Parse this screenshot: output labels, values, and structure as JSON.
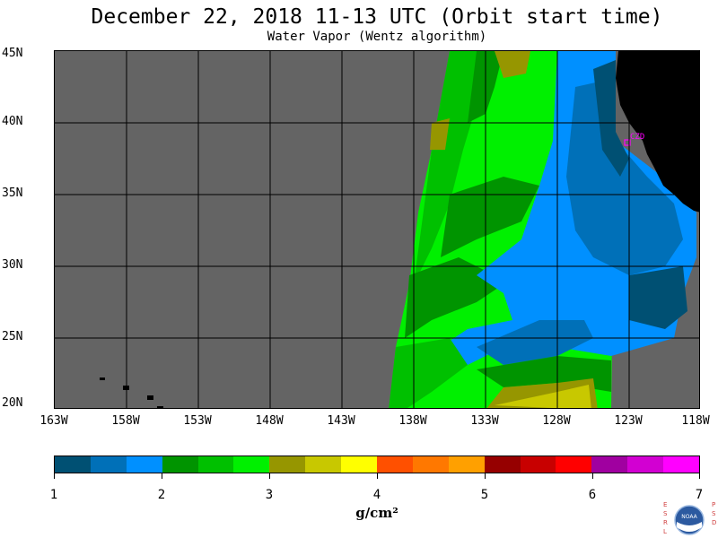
{
  "header": {
    "title": "December 22, 2018  11-13 UTC  (Orbit start time)",
    "subtitle": "Water Vapor (Wentz algorithm)"
  },
  "map": {
    "lat_labels": [
      "45N",
      "40N",
      "35N",
      "30N",
      "25N",
      "20N"
    ],
    "lon_labels": [
      "163W",
      "158W",
      "153W",
      "148W",
      "143W",
      "138W",
      "133W",
      "128W",
      "123W",
      "118W"
    ],
    "lat_values": [
      45,
      40,
      35,
      30,
      25,
      20
    ],
    "lon_values": [
      -163,
      -158,
      -153,
      -148,
      -143,
      -138,
      -133,
      -128,
      -123,
      -118
    ],
    "station_label": "CZD",
    "colors": {
      "no_data": "#646464",
      "land": "#000000",
      "grid": "#000000",
      "station": "#ff00ff"
    }
  },
  "colorbar": {
    "labels": [
      "1",
      "2",
      "3",
      "4",
      "5",
      "6",
      "7"
    ],
    "unit": "g/cm²",
    "colors": [
      "#005073",
      "#0070b8",
      "#0090ff",
      "#009400",
      "#00c000",
      "#00f000",
      "#969600",
      "#c8c800",
      "#ffff00",
      "#ff5000",
      "#ff7800",
      "#ffa000",
      "#960000",
      "#c80000",
      "#ff0000",
      "#a000a0",
      "#d200d2",
      "#ff00ff"
    ]
  },
  "logo": {
    "left_letters": "ESRL",
    "right_letters": "PSD",
    "center_text": "NOAA"
  }
}
